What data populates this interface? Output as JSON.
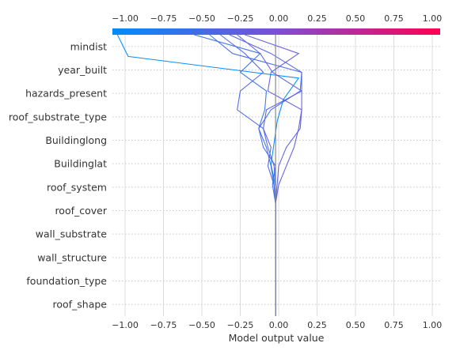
{
  "chart_data": {
    "type": "line",
    "title": "",
    "xlabel": "Model output value",
    "ylabel": "",
    "xlim": [
      -1.1,
      1.06
    ],
    "xticks": [
      -1.0,
      -0.75,
      -0.5,
      -0.25,
      0.0,
      0.25,
      0.5,
      0.75,
      1.0
    ],
    "xtick_labels": [
      "−1.00",
      "−0.75",
      "−0.50",
      "−0.25",
      "0.00",
      "0.25",
      "0.50",
      "0.75",
      "1.00"
    ],
    "base_value": -0.02,
    "grid": true,
    "colorbar": {
      "position": "top",
      "low_color": "#008bfb",
      "high_color": "#ff0052"
    },
    "features": [
      "mindist",
      "year_built",
      "hazards_present",
      "roof_substrate_type",
      "Buildinglong",
      "Buildinglat",
      "roof_system",
      "roof_cover",
      "wall_substrate",
      "wall_structure",
      "foundation_type",
      "roof_shape"
    ],
    "series": [
      {
        "values": [
          -0.02,
          -0.02,
          -0.02,
          -0.02,
          -0.02,
          -0.02,
          -0.02,
          -0.05,
          -0.03,
          -0.01,
          0.03,
          0.13,
          -0.98,
          -1.05
        ]
      },
      {
        "values": [
          -0.02,
          -0.02,
          -0.02,
          -0.02,
          -0.02,
          -0.02,
          -0.02,
          -0.03,
          -0.05,
          -0.08,
          -0.13,
          -0.05,
          0.14,
          0.15,
          -0.3,
          -0.45
        ]
      },
      {
        "values": [
          -0.02,
          -0.02,
          -0.02,
          -0.02,
          -0.02,
          -0.02,
          -0.02,
          -0.02,
          -0.03,
          -0.07,
          -0.1,
          -0.08,
          0.15,
          0.15,
          -0.05,
          -0.32
        ]
      },
      {
        "values": [
          -0.02,
          -0.02,
          -0.02,
          -0.02,
          -0.02,
          -0.02,
          -0.02,
          -0.01,
          0.0,
          0.05,
          0.14,
          0.15,
          0.15,
          -0.04,
          -0.12,
          -0.27
        ]
      },
      {
        "values": [
          -0.02,
          -0.02,
          -0.02,
          -0.02,
          -0.02,
          -0.02,
          -0.02,
          0.0,
          0.05,
          0.1,
          0.13,
          0.15,
          -0.07,
          -0.05,
          0.13,
          -0.22
        ]
      },
      {
        "values": [
          -0.02,
          -0.02,
          -0.02,
          -0.02,
          -0.02,
          -0.02,
          -0.02,
          -0.04,
          -0.02,
          -0.1,
          -0.13,
          -0.09,
          -0.08,
          -0.25,
          -0.12,
          -0.55
        ]
      },
      {
        "values": [
          -0.02,
          -0.02,
          -0.02,
          -0.02,
          -0.02,
          -0.02,
          -0.02,
          -0.03,
          -0.07,
          -0.05,
          -0.1,
          -0.27,
          -0.25,
          -0.1,
          -0.22,
          -0.38
        ]
      }
    ]
  }
}
